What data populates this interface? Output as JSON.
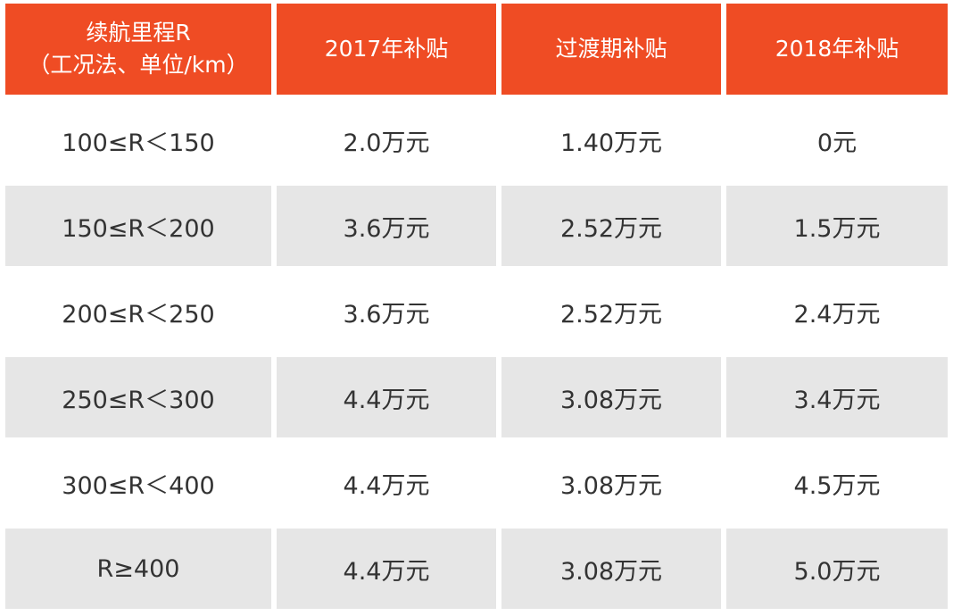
{
  "table": {
    "header": [
      [
        "续航里程R",
        "（工况法、单位/km）"
      ],
      [
        "2017年补贴"
      ],
      [
        "过渡期补贴"
      ],
      [
        "2018年补贴"
      ]
    ],
    "rows": [
      [
        "100≤R＜150",
        "2.0万元",
        "1.40万元",
        "0元"
      ],
      [
        "150≤R＜200",
        "3.6万元",
        "2.52万元",
        "1.5万元"
      ],
      [
        "200≤R＜250",
        "3.6万元",
        "2.52万元",
        "2.4万元"
      ],
      [
        "250≤R＜300",
        "4.4万元",
        "3.08万元",
        "3.4万元"
      ],
      [
        "300≤R＜400",
        "4.4万元",
        "3.08万元",
        "4.5万元"
      ],
      [
        "R≥400",
        "4.4万元",
        "3.08万元",
        "5.0万元"
      ]
    ]
  }
}
